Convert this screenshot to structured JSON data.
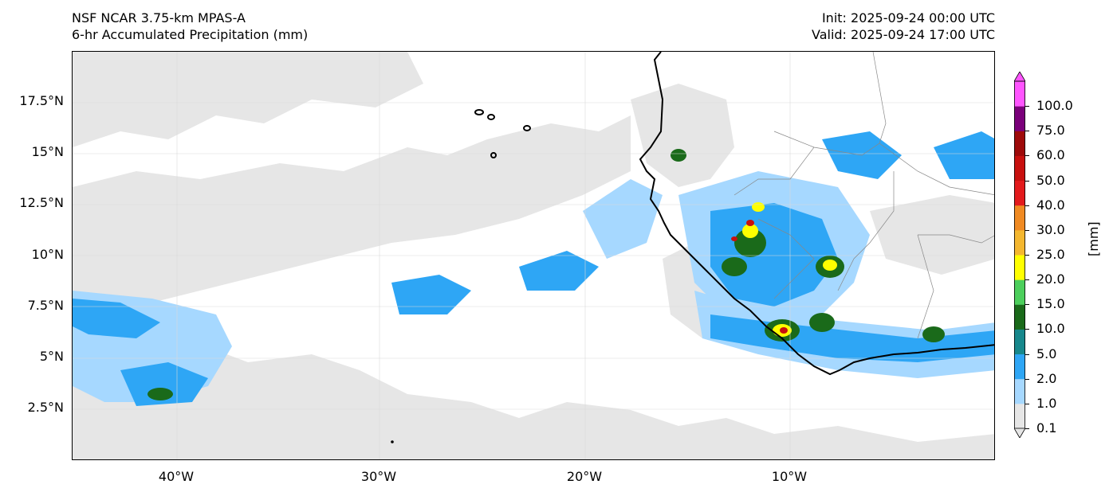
{
  "header": {
    "model": "NSF NCAR 3.75-km MPAS-A",
    "field": "6-hr Accumulated Precipitation (mm)",
    "init": "Init: 2025-09-24 00:00 UTC",
    "valid": "Valid: 2025-09-24 17:00 UTC"
  },
  "map": {
    "lat_labels": [
      "17.5°N",
      "15°N",
      "12.5°N",
      "10°N",
      "7.5°N",
      "5°N",
      "2.5°N"
    ],
    "lon_labels": [
      "40°W",
      "30°W",
      "20°W",
      "10°W"
    ],
    "extent": {
      "lon": [
        -45.5,
        -0.5
      ],
      "lat": [
        0,
        20
      ]
    },
    "coastline_color": "#000000",
    "border_color": "#888888",
    "gridlines": true
  },
  "colorbar": {
    "unit": "[mm]",
    "levels": [
      "0.1",
      "1.0",
      "2.0",
      "5.0",
      "10.0",
      "15.0",
      "20.0",
      "25.0",
      "30.0",
      "40.0",
      "50.0",
      "60.0",
      "75.0",
      "100.0"
    ],
    "colors": [
      "#e6e6e6",
      "#a6d8ff",
      "#2ea6f5",
      "#17888c",
      "#1a6a1a",
      "#4ccf5c",
      "#ffff00",
      "#f4b72f",
      "#f08a22",
      "#e31a1c",
      "#c8100e",
      "#9e0a0a",
      "#7a007a",
      "#ff55ff"
    ]
  }
}
